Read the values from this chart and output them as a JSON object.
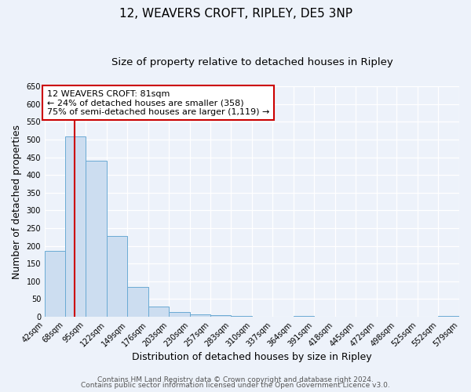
{
  "title": "12, WEAVERS CROFT, RIPLEY, DE5 3NP",
  "subtitle": "Size of property relative to detached houses in Ripley",
  "xlabel": "Distribution of detached houses by size in Ripley",
  "ylabel": "Number of detached properties",
  "bins": [
    42,
    68,
    95,
    122,
    149,
    176,
    203,
    230,
    257,
    283,
    310,
    337,
    364,
    391,
    418,
    445,
    472,
    498,
    525,
    552,
    579
  ],
  "values": [
    185,
    510,
    440,
    228,
    85,
    30,
    14,
    7,
    5,
    2,
    0,
    0,
    2,
    0,
    0,
    0,
    0,
    0,
    0,
    2
  ],
  "bar_color": "#ccddf0",
  "bar_edge_color": "#6aaad4",
  "vline_x": 81,
  "vline_color": "#cc0000",
  "ylim": [
    0,
    650
  ],
  "yticks": [
    0,
    50,
    100,
    150,
    200,
    250,
    300,
    350,
    400,
    450,
    500,
    550,
    600,
    650
  ],
  "annotation_text": "12 WEAVERS CROFT: 81sqm\n← 24% of detached houses are smaller (358)\n75% of semi-detached houses are larger (1,119) →",
  "annotation_box_color": "#ffffff",
  "annotation_box_edge": "#cc0000",
  "footer_line1": "Contains HM Land Registry data © Crown copyright and database right 2024.",
  "footer_line2": "Contains public sector information licensed under the Open Government Licence v3.0.",
  "background_color": "#edf2fa",
  "plot_bg_color": "#edf2fa",
  "grid_color": "#ffffff",
  "title_fontsize": 11,
  "subtitle_fontsize": 9.5,
  "label_fontsize": 9,
  "tick_fontsize": 7,
  "annotation_fontsize": 8,
  "footer_fontsize": 6.5
}
